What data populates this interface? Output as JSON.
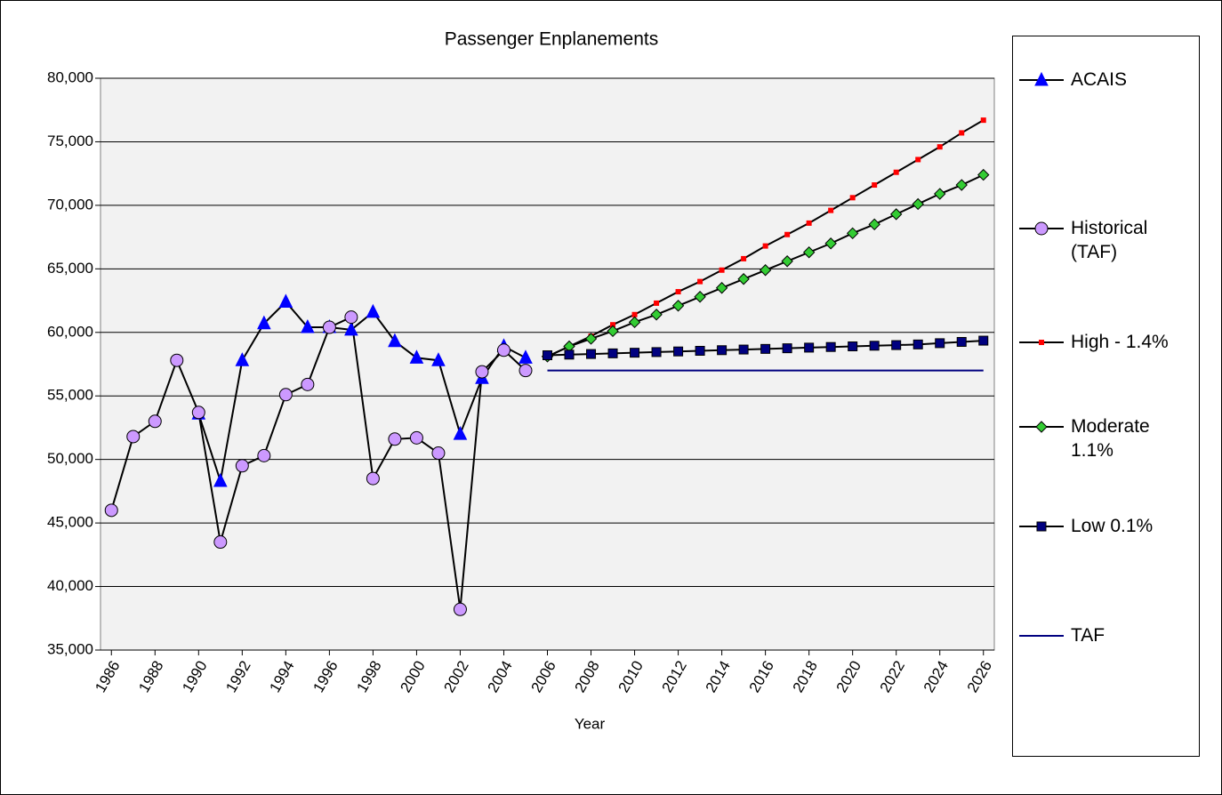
{
  "chart_data": {
    "type": "line",
    "title": "Passenger Enplanements",
    "x_label": "Year",
    "x": [
      1986,
      1987,
      1988,
      1989,
      1990,
      1991,
      1992,
      1993,
      1994,
      1995,
      1996,
      1997,
      1998,
      1999,
      2000,
      2001,
      2002,
      2003,
      2004,
      2005,
      2006,
      2007,
      2008,
      2009,
      2010,
      2011,
      2012,
      2013,
      2014,
      2015,
      2016,
      2017,
      2018,
      2019,
      2020,
      2021,
      2022,
      2023,
      2024,
      2025,
      2026
    ],
    "xlim": [
      1985.5,
      2026.5
    ],
    "xticks": [
      1986,
      1988,
      1990,
      1992,
      1994,
      1996,
      1998,
      2000,
      2002,
      2004,
      2006,
      2008,
      2010,
      2012,
      2014,
      2016,
      2018,
      2020,
      2022,
      2024,
      2026
    ],
    "ylim": [
      35000,
      80000
    ],
    "yticks": [
      {
        "value": 35000,
        "label": "35,000"
      },
      {
        "value": 40000,
        "label": "40,000"
      },
      {
        "value": 45000,
        "label": "45,000"
      },
      {
        "value": 50000,
        "label": "50,000"
      },
      {
        "value": 55000,
        "label": "55,000"
      },
      {
        "value": 60000,
        "label": "60,000"
      },
      {
        "value": 65000,
        "label": "65,000"
      },
      {
        "value": 70000,
        "label": "70,000"
      },
      {
        "value": 75000,
        "label": "75,000"
      },
      {
        "value": 80000,
        "label": "80,000"
      }
    ],
    "grid": true,
    "legend": "right",
    "series": [
      {
        "name": "ACAIS",
        "color": "#0000ff",
        "line_color": "#000000",
        "marker": "triangle",
        "values": [
          null,
          null,
          null,
          null,
          53600,
          48300,
          57800,
          60700,
          62400,
          60400,
          60400,
          60200,
          61600,
          59300,
          58000,
          57800,
          52000,
          56400,
          58900,
          58000,
          null,
          null,
          null,
          null,
          null,
          null,
          null,
          null,
          null,
          null,
          null,
          null,
          null,
          null,
          null,
          null,
          null,
          null,
          null,
          null,
          null
        ]
      },
      {
        "name": "Historical (TAF)",
        "color": "#cc99ff",
        "line_color": "#000000",
        "marker": "circle",
        "values": [
          46000,
          51800,
          53000,
          57800,
          53700,
          43500,
          49500,
          50300,
          55100,
          55900,
          60400,
          61200,
          48500,
          51600,
          51700,
          50500,
          38200,
          56900,
          58600,
          57000,
          null,
          null,
          null,
          null,
          null,
          null,
          null,
          null,
          null,
          null,
          null,
          null,
          null,
          null,
          null,
          null,
          null,
          null,
          null,
          null,
          null
        ]
      },
      {
        "name": "High - 1.4%",
        "color": "#ff0000",
        "line_color": "#000000",
        "marker": "star",
        "values": [
          null,
          null,
          null,
          null,
          null,
          null,
          null,
          null,
          null,
          null,
          null,
          null,
          null,
          null,
          null,
          null,
          null,
          null,
          null,
          null,
          58100,
          58900,
          59700,
          60600,
          61400,
          62300,
          63200,
          64000,
          64900,
          65800,
          66800,
          67700,
          68600,
          69600,
          70600,
          71600,
          72600,
          73600,
          74600,
          75700,
          76700
        ]
      },
      {
        "name": "Moderate 1.1%",
        "color": "#33cc33",
        "line_color": "#000000",
        "marker": "diamond",
        "values": [
          null,
          null,
          null,
          null,
          null,
          null,
          null,
          null,
          null,
          null,
          null,
          null,
          null,
          null,
          null,
          null,
          null,
          null,
          null,
          null,
          58100,
          58900,
          59500,
          60100,
          60800,
          61400,
          62100,
          62800,
          63500,
          64200,
          64900,
          65600,
          66300,
          67000,
          67800,
          68500,
          69300,
          70100,
          70900,
          71600,
          72400
        ]
      },
      {
        "name": "Low 0.1%",
        "color": "#000080",
        "line_color": "#000000",
        "marker": "square",
        "values": [
          null,
          null,
          null,
          null,
          null,
          null,
          null,
          null,
          null,
          null,
          null,
          null,
          null,
          null,
          null,
          null,
          null,
          null,
          null,
          null,
          58200,
          58250,
          58300,
          58350,
          58400,
          58450,
          58500,
          58550,
          58600,
          58650,
          58700,
          58750,
          58800,
          58850,
          58900,
          58950,
          59000,
          59050,
          59150,
          59250,
          59350
        ]
      },
      {
        "name": "TAF",
        "color": "#000080",
        "line_color": "#000080",
        "marker": "none",
        "values": [
          null,
          null,
          null,
          null,
          null,
          null,
          null,
          null,
          null,
          null,
          null,
          null,
          null,
          null,
          null,
          null,
          null,
          null,
          null,
          null,
          57000,
          57000,
          57000,
          57000,
          57000,
          57000,
          57000,
          57000,
          57000,
          57000,
          57000,
          57000,
          57000,
          57000,
          57000,
          57000,
          57000,
          57000,
          57000,
          57000,
          57000
        ]
      }
    ]
  }
}
